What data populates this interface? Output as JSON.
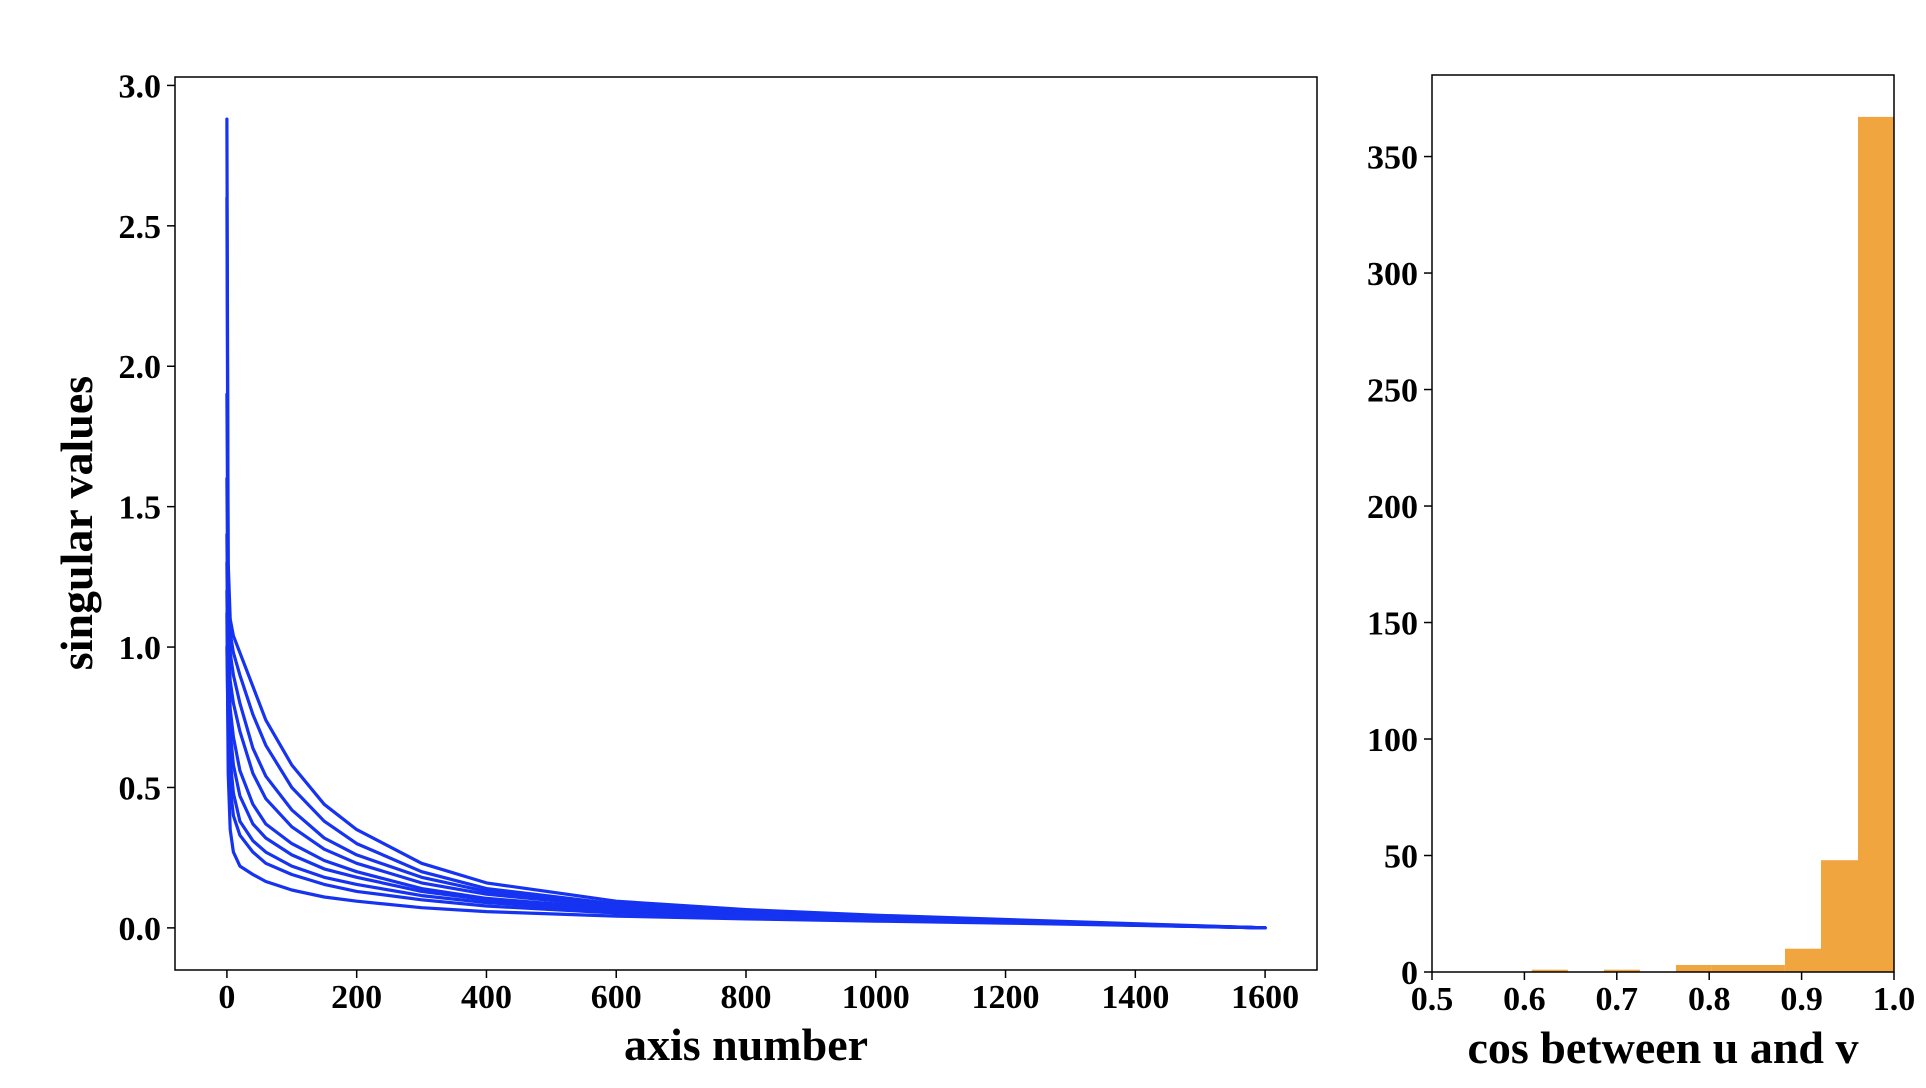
{
  "chart_data": [
    {
      "type": "line",
      "xlabel": "axis number",
      "ylabel": "singular values",
      "xlim": [
        -80,
        1680
      ],
      "ylim": [
        -0.15,
        3.03
      ],
      "xticks": [
        0,
        200,
        400,
        600,
        800,
        1000,
        1200,
        1400,
        1600
      ],
      "xtick_labels": [
        "0",
        "200",
        "400",
        "600",
        "800",
        "1000",
        "1200",
        "1400",
        "1600"
      ],
      "yticks": [
        0.0,
        0.5,
        1.0,
        1.5,
        2.0,
        2.5,
        3.0
      ],
      "ytick_labels": [
        "0.0",
        "0.5",
        "1.0",
        "1.5",
        "2.0",
        "2.5",
        "3.0"
      ],
      "color": "#1533f0",
      "grid": false,
      "series": [
        {
          "x": [
            0,
            2,
            5,
            10,
            20,
            40,
            60,
            100,
            150,
            200,
            300,
            400,
            600,
            800,
            1000,
            1200,
            1400,
            1600
          ],
          "y": [
            2.88,
            1.3,
            1.1,
            1.04,
            0.98,
            0.86,
            0.74,
            0.58,
            0.44,
            0.35,
            0.23,
            0.16,
            0.095,
            0.065,
            0.045,
            0.03,
            0.015,
            0.0
          ]
        },
        {
          "x": [
            0,
            2,
            5,
            10,
            20,
            40,
            60,
            100,
            150,
            200,
            300,
            400,
            600,
            800,
            1000,
            1200,
            1400,
            1600
          ],
          "y": [
            2.6,
            1.2,
            1.05,
            0.98,
            0.9,
            0.76,
            0.65,
            0.5,
            0.38,
            0.3,
            0.2,
            0.14,
            0.085,
            0.06,
            0.04,
            0.027,
            0.013,
            0.0
          ]
        },
        {
          "x": [
            0,
            2,
            5,
            10,
            20,
            40,
            60,
            100,
            150,
            200,
            300,
            400,
            600,
            800,
            1000,
            1200,
            1400,
            1600
          ],
          "y": [
            1.9,
            1.12,
            0.98,
            0.9,
            0.8,
            0.64,
            0.54,
            0.42,
            0.32,
            0.26,
            0.18,
            0.13,
            0.08,
            0.055,
            0.038,
            0.025,
            0.012,
            0.0
          ]
        },
        {
          "x": [
            0,
            2,
            5,
            10,
            20,
            40,
            60,
            100,
            150,
            200,
            300,
            400,
            600,
            800,
            1000,
            1200,
            1400,
            1600
          ],
          "y": [
            1.6,
            1.0,
            0.88,
            0.8,
            0.7,
            0.55,
            0.46,
            0.36,
            0.28,
            0.23,
            0.16,
            0.12,
            0.075,
            0.052,
            0.036,
            0.024,
            0.012,
            0.0
          ]
        },
        {
          "x": [
            0,
            2,
            5,
            10,
            20,
            40,
            60,
            100,
            150,
            200,
            300,
            400,
            600,
            800,
            1000,
            1200,
            1400,
            1600
          ],
          "y": [
            1.4,
            0.95,
            0.78,
            0.68,
            0.56,
            0.44,
            0.37,
            0.3,
            0.24,
            0.2,
            0.14,
            0.105,
            0.068,
            0.048,
            0.034,
            0.022,
            0.011,
            0.0
          ]
        },
        {
          "x": [
            0,
            2,
            5,
            10,
            20,
            40,
            60,
            100,
            150,
            200,
            300,
            400,
            600,
            800,
            1000,
            1200,
            1400,
            1600
          ],
          "y": [
            1.3,
            0.9,
            0.7,
            0.58,
            0.47,
            0.37,
            0.32,
            0.26,
            0.21,
            0.18,
            0.13,
            0.1,
            0.065,
            0.046,
            0.032,
            0.021,
            0.011,
            0.0
          ]
        },
        {
          "x": [
            0,
            2,
            5,
            10,
            20,
            40,
            60,
            100,
            150,
            200,
            300,
            400,
            600,
            800,
            1000,
            1200,
            1400,
            1600
          ],
          "y": [
            1.2,
            0.8,
            0.6,
            0.48,
            0.38,
            0.31,
            0.27,
            0.22,
            0.18,
            0.155,
            0.115,
            0.09,
            0.06,
            0.043,
            0.03,
            0.02,
            0.01,
            0.0
          ]
        },
        {
          "x": [
            0,
            2,
            5,
            10,
            20,
            40,
            60,
            100,
            150,
            200,
            300,
            400,
            600,
            800,
            1000,
            1200,
            1400,
            1600
          ],
          "y": [
            1.12,
            0.55,
            0.35,
            0.27,
            0.22,
            0.19,
            0.165,
            0.135,
            0.11,
            0.095,
            0.072,
            0.058,
            0.042,
            0.032,
            0.024,
            0.017,
            0.009,
            0.0
          ]
        },
        {
          "x": [
            0,
            2,
            5,
            10,
            20,
            40,
            60,
            100,
            150,
            200,
            300,
            400,
            600,
            800,
            1000,
            1200,
            1400,
            1600
          ],
          "y": [
            1.0,
            0.7,
            0.5,
            0.4,
            0.33,
            0.27,
            0.23,
            0.19,
            0.155,
            0.13,
            0.1,
            0.078,
            0.053,
            0.039,
            0.028,
            0.019,
            0.01,
            0.0
          ]
        }
      ]
    },
    {
      "type": "bar",
      "subtype": "histogram",
      "xlabel": "cos between u and v",
      "ylabel": "",
      "xlim": [
        0.5,
        1.0
      ],
      "ylim": [
        0,
        385
      ],
      "xticks": [
        0.5,
        0.6,
        0.7,
        0.8,
        0.9,
        1.0
      ],
      "xtick_labels": [
        "0.5",
        "0.6",
        "0.7",
        "0.8",
        "0.9",
        "1.0"
      ],
      "yticks": [
        0,
        50,
        100,
        150,
        200,
        250,
        300,
        350
      ],
      "ytick_labels": [
        "0",
        "50",
        "100",
        "150",
        "200",
        "250",
        "300",
        "350"
      ],
      "color": "#f0a53e",
      "grid": false,
      "bins": [
        {
          "x0": 0.608,
          "x1": 0.647,
          "count": 1
        },
        {
          "x0": 0.686,
          "x1": 0.725,
          "count": 1
        },
        {
          "x0": 0.764,
          "x1": 0.803,
          "count": 3
        },
        {
          "x0": 0.803,
          "x1": 0.843,
          "count": 3
        },
        {
          "x0": 0.843,
          "x1": 0.882,
          "count": 3
        },
        {
          "x0": 0.882,
          "x1": 0.921,
          "count": 10
        },
        {
          "x0": 0.921,
          "x1": 0.961,
          "count": 48
        },
        {
          "x0": 0.961,
          "x1": 1.0,
          "count": 367
        }
      ]
    }
  ]
}
